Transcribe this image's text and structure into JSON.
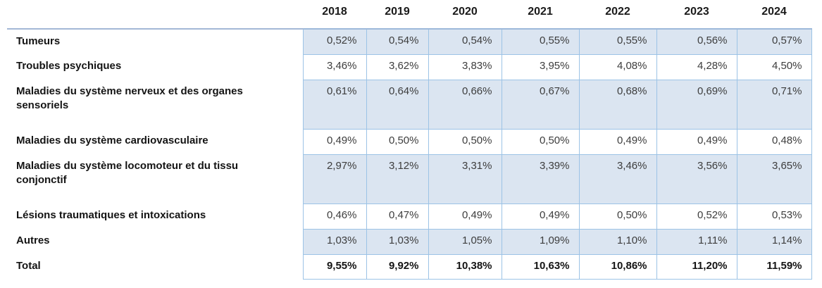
{
  "chart_data": {
    "type": "table",
    "title": "",
    "columns": [
      "2018",
      "2019",
      "2020",
      "2021",
      "2022",
      "2023",
      "2024"
    ],
    "rows": [
      {
        "label": "Tumeurs",
        "values": [
          "0,52%",
          "0,54%",
          "0,54%",
          "0,55%",
          "0,55%",
          "0,56%",
          "0,57%"
        ],
        "shaded": true,
        "tall": false,
        "total": false
      },
      {
        "label": "Troubles psychiques",
        "values": [
          "3,46%",
          "3,62%",
          "3,83%",
          "3,95%",
          "4,08%",
          "4,28%",
          "4,50%"
        ],
        "shaded": false,
        "tall": false,
        "total": false
      },
      {
        "label": "Maladies du système nerveux et des organes sensoriels",
        "values": [
          "0,61%",
          "0,64%",
          "0,66%",
          "0,67%",
          "0,68%",
          "0,69%",
          "0,71%"
        ],
        "shaded": true,
        "tall": true,
        "total": false
      },
      {
        "label": "Maladies du système cardiovasculaire",
        "values": [
          "0,49%",
          "0,50%",
          "0,50%",
          "0,50%",
          "0,49%",
          "0,49%",
          "0,48%"
        ],
        "shaded": false,
        "tall": false,
        "total": false
      },
      {
        "label": "Maladies du système locomoteur et du tissu conjonctif",
        "values": [
          "2,97%",
          "3,12%",
          "3,31%",
          "3,39%",
          "3,46%",
          "3,56%",
          "3,65%"
        ],
        "shaded": true,
        "tall": true,
        "total": false
      },
      {
        "label": "Lésions traumatiques et intoxications",
        "values": [
          "0,46%",
          "0,47%",
          "0,49%",
          "0,49%",
          "0,50%",
          "0,52%",
          "0,53%"
        ],
        "shaded": false,
        "tall": false,
        "total": false
      },
      {
        "label": "Autres",
        "values": [
          "1,03%",
          "1,03%",
          "1,05%",
          "1,09%",
          "1,10%",
          "1,11%",
          "1,14%"
        ],
        "shaded": true,
        "tall": false,
        "total": false
      },
      {
        "label": "Total",
        "values": [
          "9,55%",
          "9,92%",
          "10,38%",
          "10,63%",
          "10,86%",
          "11,20%",
          "11,59%"
        ],
        "shaded": false,
        "tall": false,
        "total": true
      }
    ],
    "colors": {
      "shaded_row_fill": "#dbe5f1",
      "cell_border": "#9cc3e6",
      "header_rule": "#9db9da",
      "value_text": "#3d3d3d",
      "label_text": "#141414"
    }
  }
}
